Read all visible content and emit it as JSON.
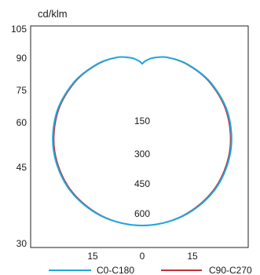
{
  "chart_data": {
    "type": "polar",
    "ylabel": "cd/klm",
    "left_tick_labels": [
      "105",
      "90",
      "75",
      "60",
      "45",
      "30"
    ],
    "bottom_tick_labels": [
      "15",
      "0",
      "15"
    ],
    "radial_tick_labels": [
      "150",
      "300",
      "450",
      "600"
    ],
    "radial_ticks": [
      150,
      300,
      450,
      600
    ],
    "r_max": 600,
    "series": [
      {
        "name": "C0-C180",
        "color": "#1fa8dc",
        "angles": [
          0,
          15,
          30,
          45,
          60,
          75,
          90,
          105,
          120,
          135,
          150,
          165,
          180
        ],
        "values": [
          600,
          585,
          540,
          465,
          370,
          265,
          170,
          100,
          50,
          20,
          6,
          1,
          0
        ]
      },
      {
        "name": "C90-C270",
        "color": "#c0303a",
        "angles": [
          0,
          15,
          30,
          45,
          60,
          75,
          90,
          105,
          120,
          135,
          150,
          165,
          180
        ],
        "values": [
          600,
          583,
          536,
          460,
          364,
          260,
          166,
          98,
          48,
          19,
          6,
          1,
          0
        ]
      }
    ]
  }
}
